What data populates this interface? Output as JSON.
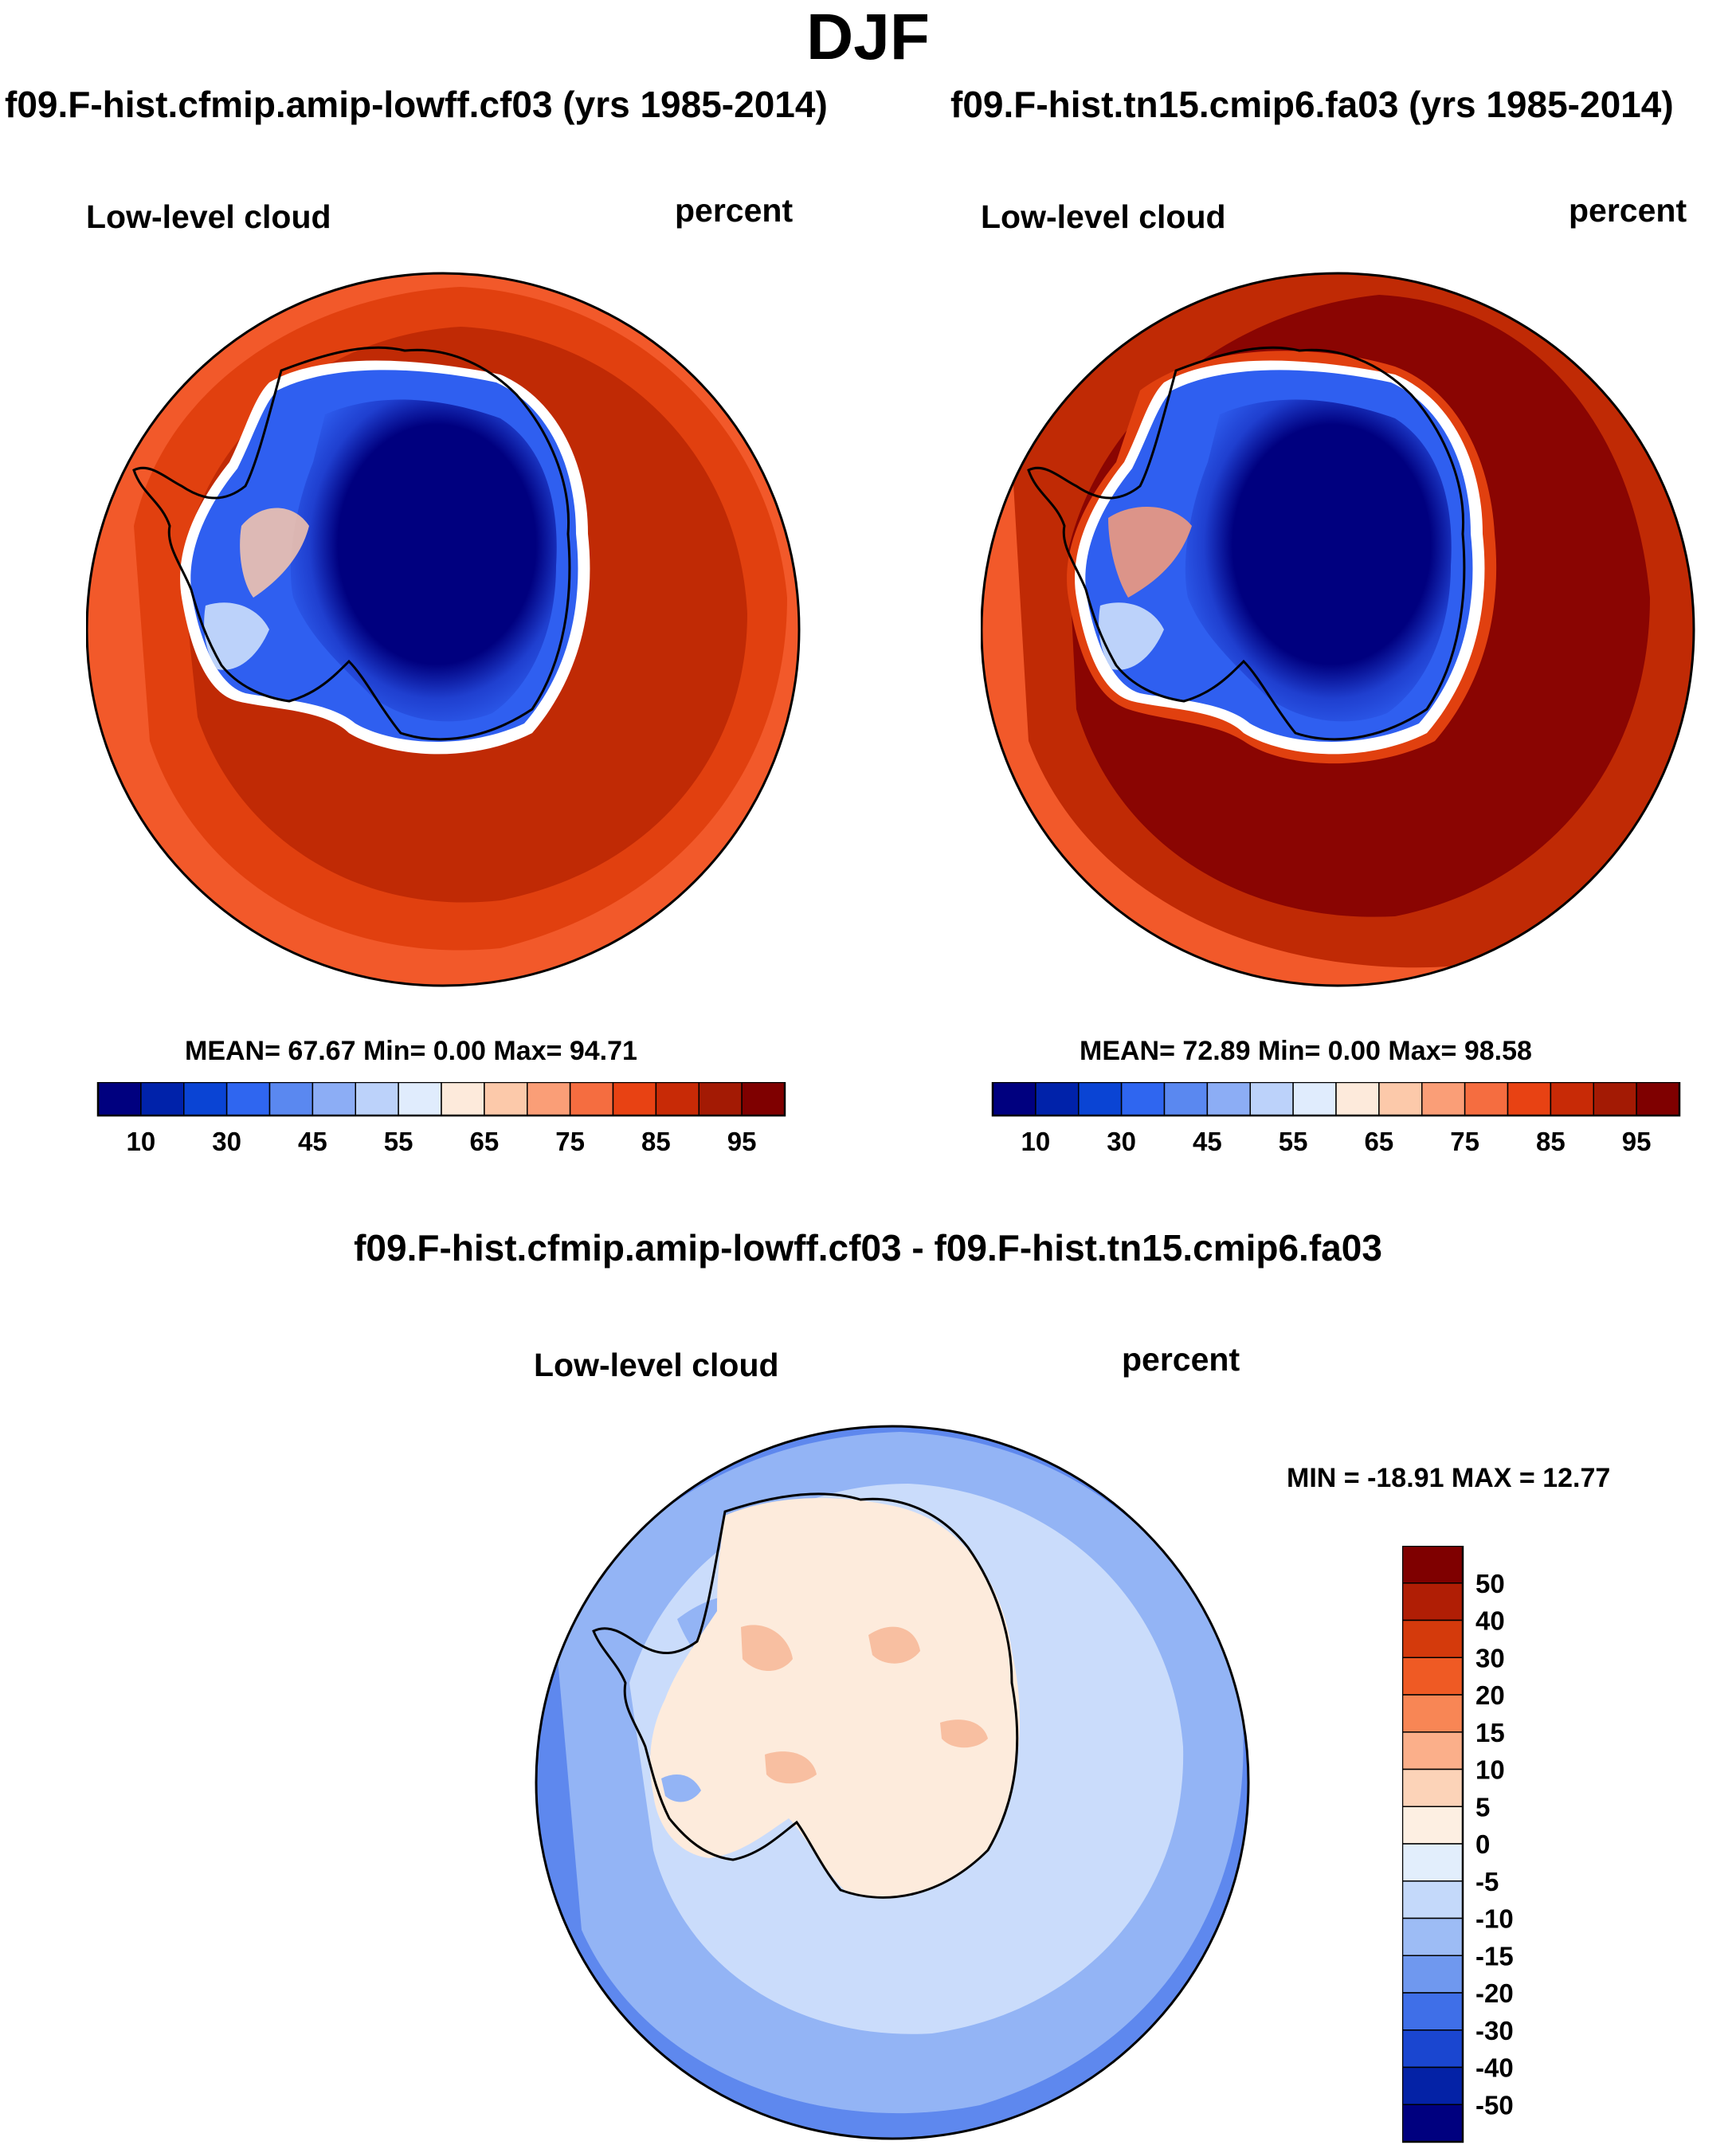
{
  "figure": {
    "title": "DJF"
  },
  "panels": [
    {
      "title": "f09.F-hist.cfmip.amip-lowff.cf03 (yrs 1985-2014)",
      "variable": "Low-level cloud",
      "units": "percent",
      "stats": "MEAN=  67.67  Min=   0.00  Max=  94.71",
      "mean": 67.67,
      "min": 0.0,
      "max": 94.71
    },
    {
      "title": "f09.F-hist.tn15.cmip6.fa03 (yrs 1985-2014)",
      "variable": "Low-level cloud",
      "units": "percent",
      "stats": "MEAN=  72.89  Min=   0.00  Max=  98.58",
      "mean": 72.89,
      "min": 0.0,
      "max": 98.58
    },
    {
      "title": "f09.F-hist.cfmip.amip-lowff.cf03 - f09.F-hist.tn15.cmip6.fa03",
      "variable": "Low-level cloud",
      "units": "percent",
      "stats": "MIN = -18.91 MAX =  12.77",
      "min": -18.91,
      "max": 12.77
    }
  ],
  "colorbar_abs": {
    "labels": [
      "10",
      "30",
      "45",
      "55",
      "65",
      "75",
      "85",
      "95"
    ],
    "colors": [
      "#00007f",
      "#0022aa",
      "#0a44d4",
      "#2f66f0",
      "#5a88f0",
      "#8cadf5",
      "#bcd2fa",
      "#e0ecfd",
      "#fdeadb",
      "#fcc9aa",
      "#fa9e77",
      "#f56d40",
      "#e84213",
      "#c82a06",
      "#a31a04",
      "#7f0000"
    ]
  },
  "colorbar_diff": {
    "labels": [
      "50",
      "40",
      "30",
      "20",
      "15",
      "10",
      "5",
      "0",
      "-5",
      "-10",
      "-15",
      "-20",
      "-30",
      "-40",
      "-50"
    ],
    "colors": [
      "#7f0000",
      "#b01e05",
      "#d43a0c",
      "#ef5a24",
      "#f88655",
      "#fbaf8a",
      "#fcd3b8",
      "#fdefe2",
      "#e2eefc",
      "#c4d9fa",
      "#9dbcf5",
      "#6f98ef",
      "#3f6fe8",
      "#1a46d0",
      "#0422a6",
      "#00007f"
    ]
  },
  "map_colors": {
    "ocean_l1": "#fdebd9",
    "ocean_l2": "#fa9a70",
    "ocean_l3": "#f2592a",
    "ocean_l4": "#e1400f",
    "ocean_l5": "#c02a05",
    "ocean_l6": "#8a0502",
    "ice_edge": "#2f5ff0",
    "ice_mid": "#1f3fcf",
    "ice_core": "#00007f",
    "diff_outer": "#5e88ee",
    "diff_mid": "#93b4f5",
    "diff_inner": "#cadcfb",
    "diff_land": "#fdebdc",
    "diff_warm": "#f8bfa1"
  }
}
